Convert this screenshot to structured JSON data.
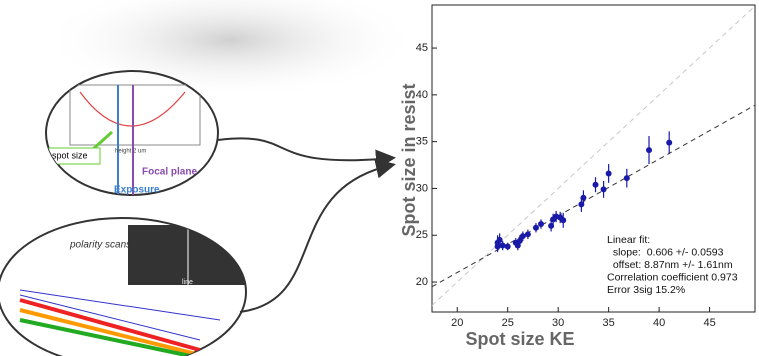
{
  "chart_data": {
    "type": "scatter",
    "xlabel": "Spot size KE",
    "ylabel": "Spot size in resist",
    "xlim": [
      17.5,
      49.5
    ],
    "ylim": [
      16.8,
      49.6
    ],
    "xticks": [
      20,
      25,
      30,
      35,
      40,
      45
    ],
    "yticks": [
      20,
      25,
      30,
      35,
      40,
      45
    ],
    "color": "#1a1aa8",
    "x": [
      24,
      24,
      24.2,
      24.5,
      25,
      25.8,
      26,
      26.2,
      26.5,
      27,
      27.8,
      28.3,
      29.3,
      29.5,
      29.8,
      30.2,
      30.5,
      32.3,
      32.5,
      33.7,
      34.5,
      35,
      36.8,
      39,
      41
    ],
    "values": [
      24.2,
      23.8,
      24.5,
      23.9,
      23.8,
      24.2,
      23.9,
      24.4,
      24.9,
      25.1,
      25.8,
      26.2,
      26,
      26.7,
      27,
      26.9,
      26.6,
      28.3,
      29,
      30.4,
      29.9,
      31.6,
      31.1,
      34.1,
      34.9
    ],
    "errors": [
      0.8,
      0.6,
      0.7,
      0.5,
      0.4,
      0.5,
      0.5,
      0.6,
      0.5,
      0.5,
      0.5,
      0.5,
      0.6,
      0.6,
      0.6,
      0.6,
      0.8,
      0.8,
      0.8,
      0.8,
      0.9,
      1,
      1,
      1.5,
      1.2
    ],
    "lines": [
      {
        "color": "#c8c8c8",
        "x": [
          17.5,
          49.5
        ],
        "y": [
          17.5,
          49.5
        ]
      },
      {
        "color": "#333333",
        "x": [
          17.5,
          49.5
        ],
        "y": [
          19.5,
          38.9
        ]
      }
    ],
    "annotation": [
      "Linear fit:",
      "  slope:  0.606 +/- 0.0593",
      "  offset: 8.87nm +/- 1.61nm",
      "Correlation coefficient 0.973",
      "Error 3sig 15.2%"
    ]
  },
  "insets": [
    {
      "labels": [
        "spot size",
        "Focal plane",
        "Exposure",
        "height 2 um"
      ]
    },
    {
      "labels": [
        "polarity scans",
        "line"
      ]
    }
  ]
}
